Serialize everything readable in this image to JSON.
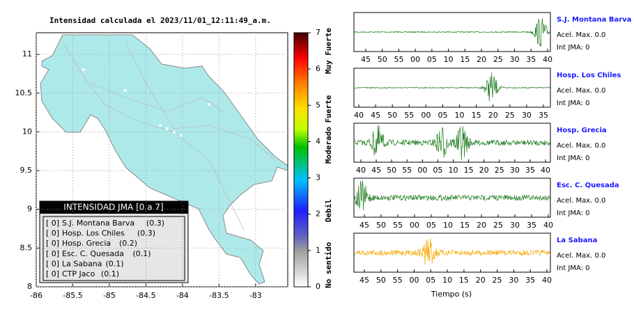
{
  "map": {
    "title": "Intensidad calculada el 2023/11/01_12:11:49_a.m.",
    "xlim": [
      -86,
      -82.56
    ],
    "ylim": [
      8,
      11.28
    ],
    "xticks": [
      -86,
      -85.5,
      -85,
      -84.5,
      -84,
      -83.5,
      -83
    ],
    "yticks": [
      8,
      8.5,
      9,
      9.5,
      10,
      10.5,
      11
    ]
  },
  "colorbar": {
    "ylim": [
      0,
      7
    ],
    "ticks": [
      0,
      1,
      2,
      3,
      4,
      5,
      6,
      7
    ],
    "levels": [
      {
        "label": "No sentido",
        "value": 0.6
      },
      {
        "label": "Debil",
        "value": 2.1
      },
      {
        "label": "Moderado",
        "value": 3.9
      },
      {
        "label": "Fuerte",
        "value": 4.9
      },
      {
        "label": "Muy Fuerte",
        "value": 6.5
      }
    ]
  },
  "legend": {
    "title": "INTENSIDAD JMA [0 a 7]",
    "items": [
      {
        "level": "[ 0]",
        "name": "S.J. Montana Barva",
        "value": "(0.3)"
      },
      {
        "level": "[ 0]",
        "name": "Hosp. Los Chiles",
        "value": "(0.3)"
      },
      {
        "level": "[ 0]",
        "name": "Hosp. Grecia",
        "value": "(0.2)"
      },
      {
        "level": "[ 0]",
        "name": "Esc. C. Quesada",
        "value": "(0.1)"
      },
      {
        "level": "[ 0]",
        "name": "La Sabana",
        "value": "(0.1)"
      },
      {
        "level": "[ 0]",
        "name": "CTP Jaco",
        "value": "(0.1)"
      }
    ]
  },
  "waveforms": {
    "xlabel": "Tiempo (s)",
    "panels": [
      {
        "name": "S.J. Montana Barva",
        "accel": "Acel. Max. 0.0",
        "int": "Int JMA: 0",
        "color": "#1a7a1a",
        "ticks": [
          "45",
          "50",
          "55",
          "00",
          "05",
          "10",
          "15",
          "20",
          "25",
          "30",
          "35",
          "40"
        ]
      },
      {
        "name": "Hosp. Los Chiles",
        "accel": "Acel. Max. 0.0",
        "int": "Int JMA: 0",
        "color": "#1a7a1a",
        "ticks": [
          "40",
          "45",
          "50",
          "55",
          "00",
          "05",
          "10",
          "15",
          "20",
          "25",
          "30",
          "35"
        ]
      },
      {
        "name": "Hosp. Grecia",
        "accel": "Acel. Max. 0.0",
        "int": "Int JMA: 0",
        "color": "#1a7a1a",
        "ticks": [
          "40",
          "45",
          "50",
          "55",
          "00",
          "05",
          "10",
          "15",
          "20",
          "25",
          "30",
          "35",
          "40"
        ]
      },
      {
        "name": "Esc. C. Quesada",
        "accel": "Acel. Max. 0.0",
        "int": "Int JMA: 0",
        "color": "#1a7a1a",
        "ticks": [
          "45",
          "50",
          "55",
          "00",
          "05",
          "10",
          "15",
          "20",
          "25",
          "30",
          "35",
          "40"
        ]
      },
      {
        "name": "La Sabana",
        "accel": "Acel. Max. 0.0",
        "int": "Int JMA: 0",
        "color": "#f5a800",
        "ticks": [
          "45",
          "50",
          "55",
          "00",
          "05",
          "10",
          "15",
          "20",
          "25",
          "30",
          "35",
          "40"
        ]
      }
    ]
  }
}
